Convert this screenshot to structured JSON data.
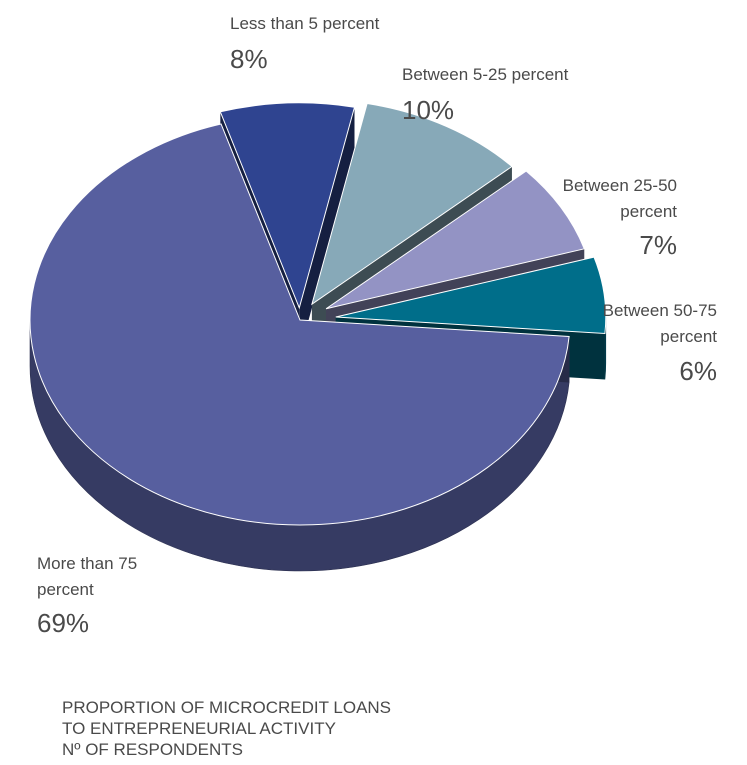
{
  "chart_data": {
    "type": "pie",
    "style": "3d-exploded",
    "slices": [
      {
        "label": "Less than 5 percent",
        "value": 8,
        "value_label": "8%",
        "color": "#2f4490"
      },
      {
        "label": "Between 5-25 percent",
        "value": 10,
        "value_label": "10%",
        "color": "#87a9b8"
      },
      {
        "label": "Between 25-50 percent",
        "value": 7,
        "value_label": "7%",
        "color": "#9393c4"
      },
      {
        "label": "Between 50-75 percent",
        "value": 6,
        "value_label": "6%",
        "color": "#006e8a"
      },
      {
        "label": "More than 75 percent",
        "value": 69,
        "value_label": "69%",
        "color": "#575f9f"
      }
    ],
    "caption": [
      "PROPORTION OF MICROCREDIT LOANS",
      "TO ENTREPRENEURIAL ACTIVITY",
      "Nº OF RESPONDENTS"
    ]
  },
  "labels": {
    "slice0": {
      "line1": "Less than 5 percent",
      "pct": "8%"
    },
    "slice1": {
      "line1": "Between 5-25 percent",
      "pct": "10%"
    },
    "slice2": {
      "line1": "Between 25-50",
      "line2": "percent",
      "pct": "7%"
    },
    "slice3": {
      "line1": "Between 50-75",
      "line2": "percent",
      "pct": "6%"
    },
    "slice4": {
      "line1": "More than 75",
      "line2": "percent",
      "pct": "69%"
    }
  }
}
